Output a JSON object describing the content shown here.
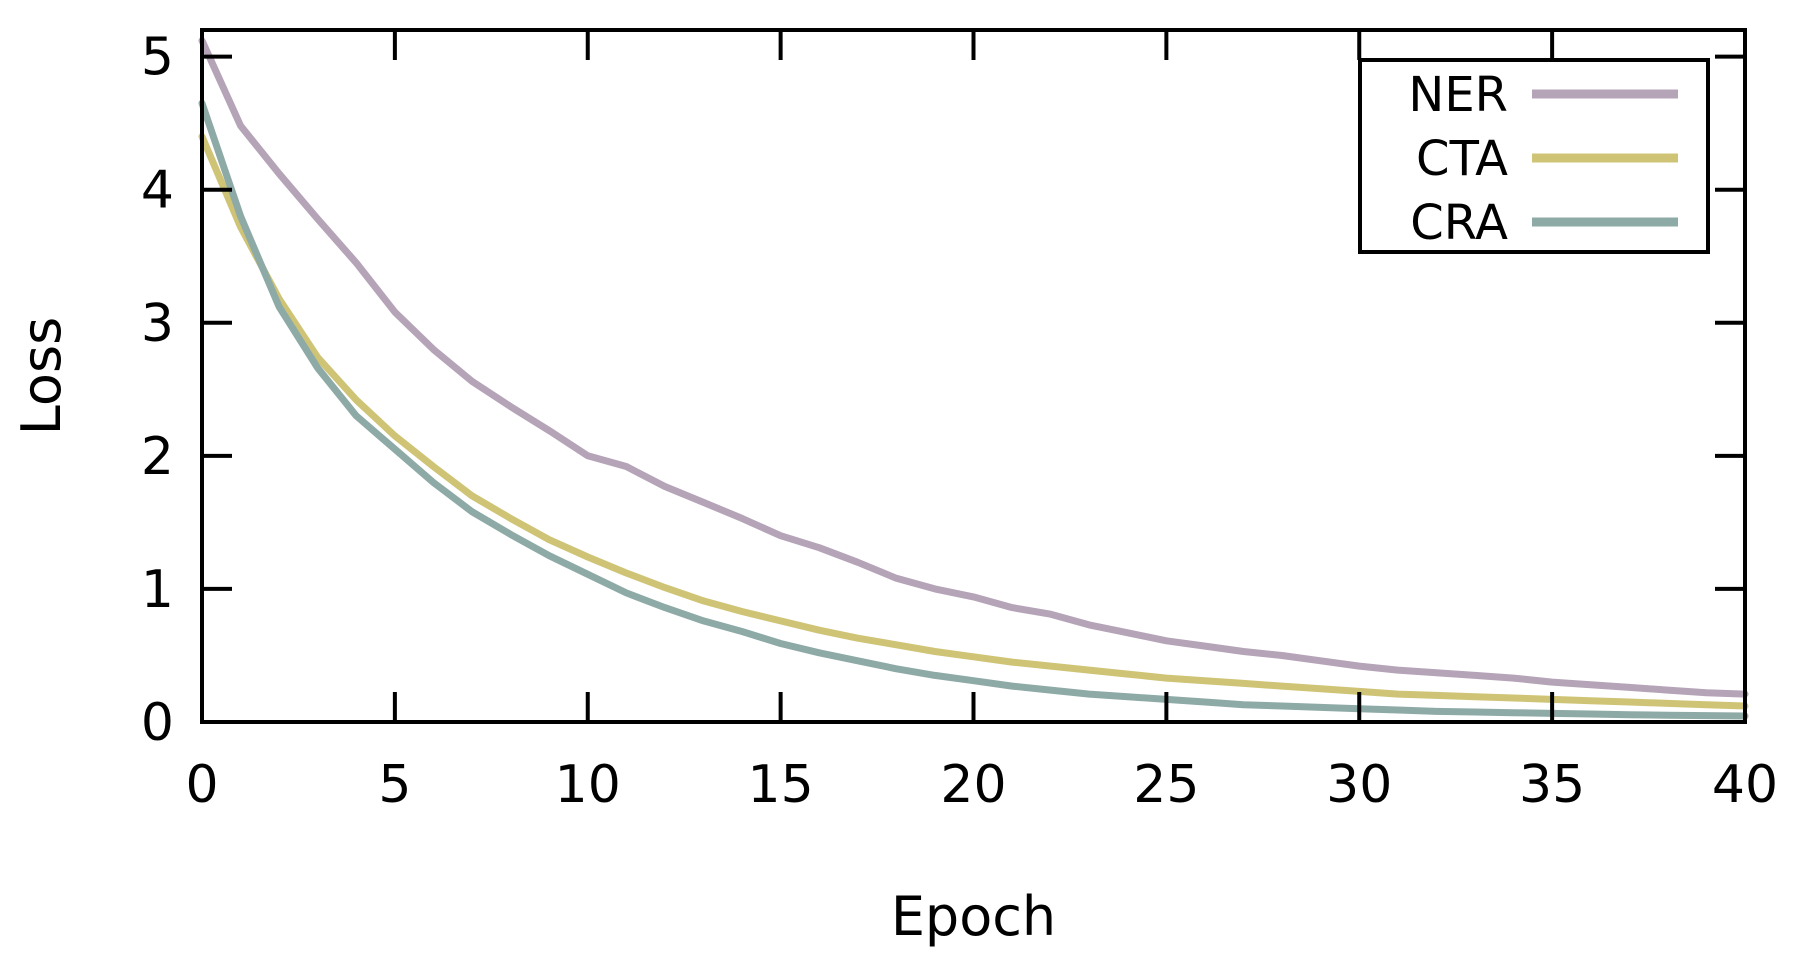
{
  "chart_data": {
    "type": "line",
    "xlabel": "Epoch",
    "ylabel": "Loss",
    "xlim": [
      0,
      40
    ],
    "ylim": [
      0,
      5.2
    ],
    "xticks": [
      0,
      5,
      10,
      15,
      20,
      25,
      30,
      35,
      40
    ],
    "yticks": [
      0,
      1,
      2,
      3,
      4,
      5
    ],
    "grid": false,
    "legend_position": "top-right",
    "x": [
      0,
      1,
      2,
      3,
      4,
      5,
      6,
      7,
      8,
      9,
      10,
      11,
      12,
      13,
      14,
      15,
      16,
      17,
      18,
      19,
      20,
      21,
      22,
      23,
      24,
      25,
      26,
      27,
      28,
      29,
      30,
      31,
      32,
      33,
      34,
      35,
      36,
      37,
      38,
      39,
      40
    ],
    "series": [
      {
        "name": "NER",
        "color": "#b5a3b8",
        "values": [
          5.12,
          4.48,
          4.12,
          3.78,
          3.45,
          3.08,
          2.8,
          2.56,
          2.37,
          2.19,
          2.0,
          1.92,
          1.77,
          1.65,
          1.53,
          1.4,
          1.31,
          1.2,
          1.08,
          1.0,
          0.94,
          0.86,
          0.81,
          0.73,
          0.67,
          0.61,
          0.57,
          0.53,
          0.5,
          0.46,
          0.42,
          0.39,
          0.37,
          0.35,
          0.33,
          0.3,
          0.28,
          0.26,
          0.24,
          0.22,
          0.21
        ]
      },
      {
        "name": "CTA",
        "color": "#cfc475",
        "values": [
          4.4,
          3.72,
          3.18,
          2.74,
          2.42,
          2.15,
          1.92,
          1.7,
          1.53,
          1.37,
          1.24,
          1.12,
          1.01,
          0.91,
          0.83,
          0.76,
          0.69,
          0.63,
          0.58,
          0.53,
          0.49,
          0.45,
          0.42,
          0.39,
          0.36,
          0.33,
          0.31,
          0.29,
          0.27,
          0.25,
          0.23,
          0.21,
          0.2,
          0.19,
          0.18,
          0.17,
          0.16,
          0.15,
          0.14,
          0.13,
          0.12
        ]
      },
      {
        "name": "CRA",
        "color": "#8eaaa6",
        "values": [
          4.65,
          3.8,
          3.12,
          2.66,
          2.3,
          2.05,
          1.8,
          1.58,
          1.41,
          1.25,
          1.11,
          0.97,
          0.86,
          0.76,
          0.68,
          0.59,
          0.52,
          0.46,
          0.4,
          0.35,
          0.31,
          0.27,
          0.24,
          0.21,
          0.19,
          0.17,
          0.15,
          0.13,
          0.12,
          0.11,
          0.1,
          0.09,
          0.08,
          0.075,
          0.07,
          0.065,
          0.06,
          0.055,
          0.05,
          0.048,
          0.045
        ]
      }
    ]
  }
}
